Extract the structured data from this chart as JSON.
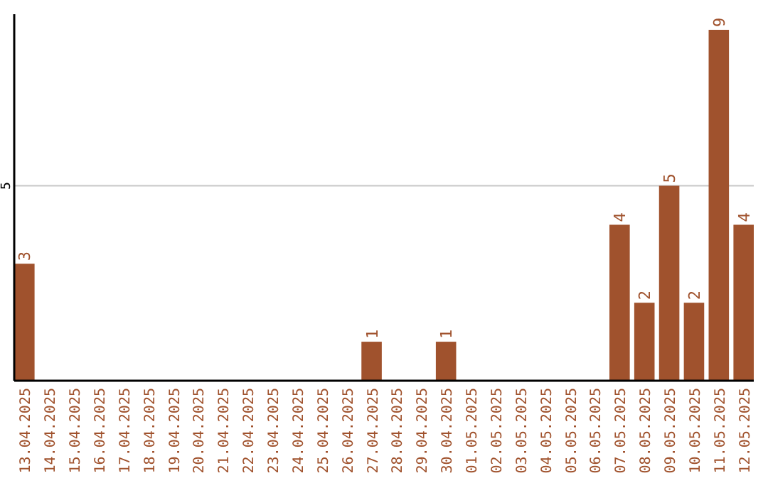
{
  "chart_data": {
    "type": "bar",
    "categories": [
      "13.04.2025",
      "14.04.2025",
      "15.04.2025",
      "16.04.2025",
      "17.04.2025",
      "18.04.2025",
      "19.04.2025",
      "20.04.2025",
      "21.04.2025",
      "22.04.2025",
      "23.04.2025",
      "24.04.2025",
      "25.04.2025",
      "26.04.2025",
      "27.04.2025",
      "28.04.2025",
      "29.04.2025",
      "30.04.2025",
      "01.05.2025",
      "02.05.2025",
      "03.05.2025",
      "04.05.2025",
      "05.05.2025",
      "06.05.2025",
      "07.05.2025",
      "08.05.2025",
      "09.05.2025",
      "10.05.2025",
      "11.05.2025",
      "12.05.2025"
    ],
    "values": [
      3,
      0,
      0,
      0,
      0,
      0,
      0,
      0,
      0,
      0,
      0,
      0,
      0,
      0,
      1,
      0,
      0,
      1,
      0,
      0,
      0,
      0,
      0,
      0,
      4,
      2,
      5,
      2,
      9,
      4
    ],
    "value_labels": [
      "3",
      null,
      null,
      null,
      null,
      null,
      null,
      null,
      null,
      null,
      null,
      null,
      null,
      null,
      "1",
      null,
      null,
      "1",
      null,
      null,
      null,
      null,
      null,
      null,
      "4",
      "2",
      "5",
      "2",
      "9",
      "4"
    ],
    "color": "#a0522d",
    "ylim": [
      0,
      9.4
    ],
    "yticks": [
      5
    ],
    "grid": "y"
  }
}
